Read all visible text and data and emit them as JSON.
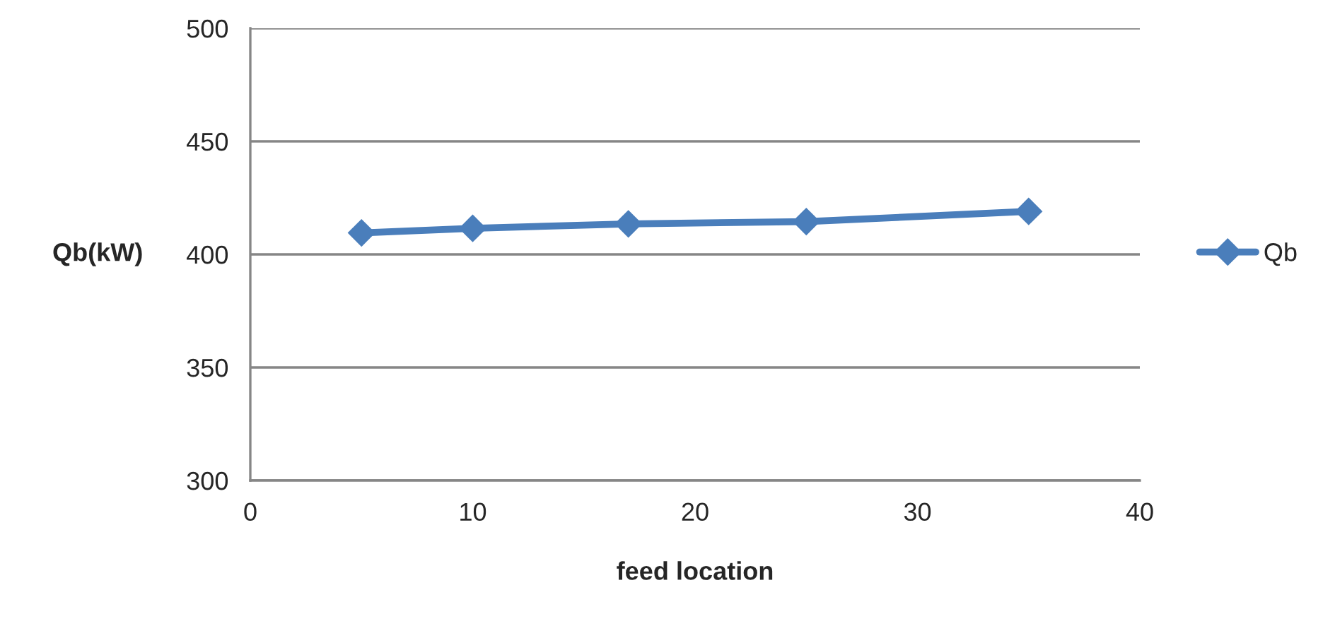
{
  "chart_data": {
    "type": "line",
    "xlabel": "feed location",
    "ylabel": "Qb(kW)",
    "x": [
      5,
      10,
      17,
      25,
      35
    ],
    "series": [
      {
        "name": "Qb",
        "color": "#4a7ebb",
        "values": [
          409.5,
          411.5,
          413.5,
          414.5,
          419
        ]
      }
    ],
    "xlim": [
      0,
      40
    ],
    "xticks": [
      0,
      10,
      20,
      30,
      40
    ],
    "ylim": [
      300,
      500
    ],
    "yticks": [
      300,
      350,
      400,
      450,
      500
    ],
    "grid": "y",
    "legend": "right",
    "marker": "diamond",
    "line_style": "solid"
  }
}
